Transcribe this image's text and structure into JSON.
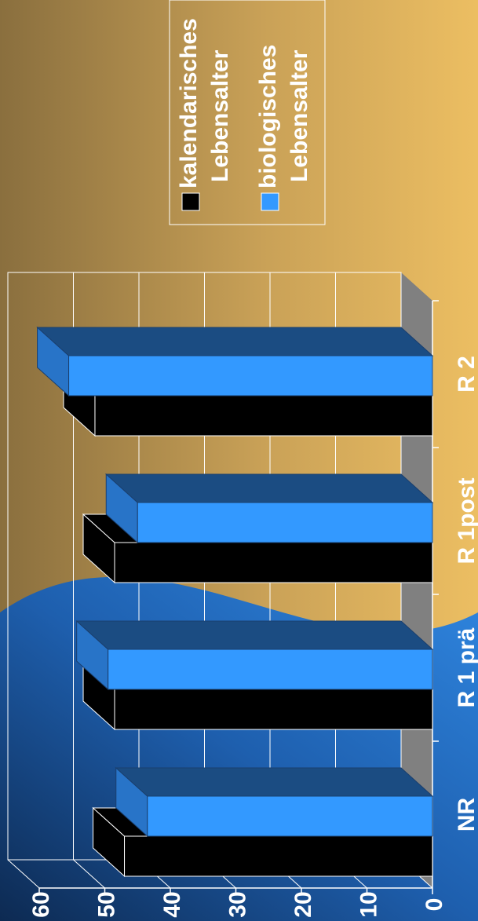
{
  "colors": {
    "bg_dark": "#8a6f3e",
    "bg_light": "#ecbe62",
    "corner_blue": "#2f86e0",
    "corner_navy": "#0d2a52",
    "series_black": "#000000",
    "series_blue": "#3399ff",
    "series_blue_dark": "#1b4c82",
    "series_blue_side": "#2874c8",
    "floor_gray": "#808080"
  },
  "chart_data": {
    "type": "bar",
    "orientation": "rotated-90",
    "three_d": true,
    "categories": [
      "NR",
      "R 1 prä",
      "R 1post",
      "R 2"
    ],
    "series": [
      {
        "name": "kalendarisches Lebensalter",
        "values": [
          47,
          48.5,
          48.5,
          51.5
        ],
        "color": "#000000"
      },
      {
        "name": "biologisches Lebensalter",
        "values": [
          43.5,
          49.5,
          45,
          55.5
        ],
        "color": "#3399ff"
      }
    ],
    "ylim": [
      0,
      60
    ],
    "yticks": [
      "0",
      "10",
      "20",
      "30",
      "40",
      "50",
      "60"
    ],
    "grid": true,
    "legend": {
      "position": "top-right",
      "items": [
        {
          "line1": "kalendarisches",
          "line2": "Lebensalter",
          "color": "#000000"
        },
        {
          "line1": "biologisches",
          "line2": "Lebensalter",
          "color": "#3399ff"
        }
      ]
    }
  }
}
